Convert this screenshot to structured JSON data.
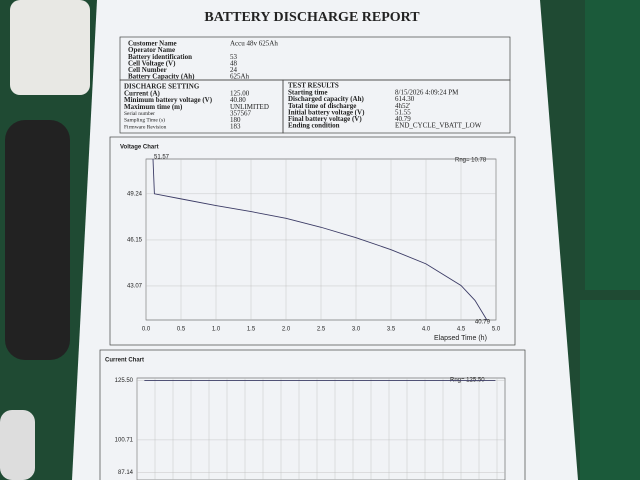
{
  "header": {
    "title": "BATTERY DISCHARGE REPORT"
  },
  "info": {
    "rows": [
      {
        "label": "Customer Name",
        "value": "Accu 48v 625Ah"
      },
      {
        "label": "Operator Name"
      },
      {
        "label": "Battery identification",
        "value": "53"
      },
      {
        "label": "Cell Voltage (V)",
        "value": "48"
      },
      {
        "label": "Cell Number",
        "value": "24"
      },
      {
        "label": "Battery Capacity (Ah)",
        "value": "625Ah"
      }
    ]
  },
  "discharge_setting": {
    "title": "DISCHARGE SETTING",
    "rows": [
      {
        "label": "Current (A)",
        "value": "125.00"
      },
      {
        "label": "Minimum battery voltage (V)",
        "value": "40.80"
      },
      {
        "label": "Maximum time (m)",
        "value": "UNLIMITED"
      },
      {
        "label": "Serial number",
        "value": "357567"
      },
      {
        "label": "Sampling Time (s)",
        "value": "180"
      },
      {
        "label": "Firmware Revision",
        "value": "183"
      }
    ]
  },
  "test_results": {
    "title": "TEST RESULTS",
    "rows": [
      {
        "label": "Starting time",
        "value": "8/15/2026 4:09:24 PM"
      },
      {
        "label": "Discharged capacity (Ah)",
        "value": "614.30"
      },
      {
        "label": "Total time of discharge",
        "value": "4h52'"
      },
      {
        "label": "Initial battery voltage (V)",
        "value": "51.55"
      },
      {
        "label": "Final battery voltage (V)",
        "value": "40.79"
      },
      {
        "label": "Ending condition",
        "value": "END_CYCLE_VBATT_LOW"
      }
    ]
  },
  "voltage_chart": {
    "type": "line",
    "title": "Voltage Chart",
    "range_label": "Rng= 10.78",
    "x_label": "Elapsed Time (h)",
    "x": [
      0.1,
      0.12,
      0.5,
      1,
      1.5,
      2,
      2.5,
      3,
      3.5,
      4,
      4.5,
      4.7,
      4.87
    ],
    "values": [
      51.57,
      49.24,
      48.9,
      48.45,
      48.05,
      47.6,
      47.0,
      46.3,
      45.5,
      44.55,
      43.1,
      42.1,
      40.79
    ],
    "color": "#3c3c66",
    "xlim": [
      0,
      5
    ],
    "ylim": [
      40.79,
      51.57
    ],
    "xticks": [
      {
        "value": 0,
        "label": "0.0"
      },
      0.5,
      {
        "value": 1,
        "label": "1.0"
      },
      1.5,
      {
        "value": 2,
        "label": "2.0"
      },
      2.5,
      {
        "value": 3,
        "label": "3.0"
      },
      3.5,
      {
        "value": 4,
        "label": "4.0"
      },
      4.5,
      {
        "value": 5,
        "label": "5.0"
      }
    ],
    "yticks": [
      49.24,
      46.15,
      43.07
    ],
    "grid": true
  },
  "current_chart": {
    "type": "line",
    "title": "Current Chart",
    "range_label": "Rng= 125.50",
    "x": [
      0.1,
      4.87
    ],
    "values": [
      125.5,
      125.5
    ],
    "color": "#3c3c66",
    "xlim": [
      0,
      5
    ],
    "ylim": [
      84,
      126.5
    ],
    "yticks": [
      {
        "value": 125.5,
        "label": "125.50"
      },
      100.71,
      87.14
    ],
    "grid": true
  }
}
